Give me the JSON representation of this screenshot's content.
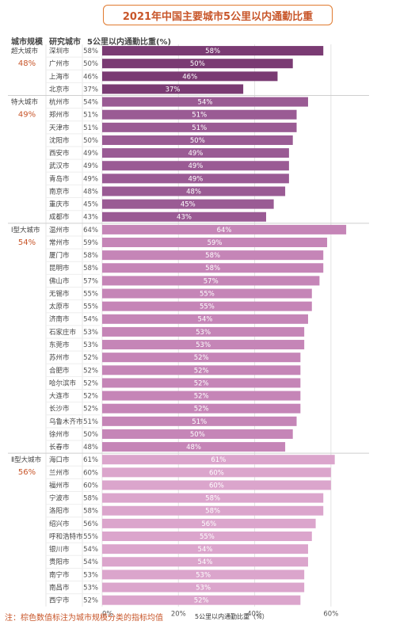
{
  "title": "2021年中国主要城市5公里以内通勤比重",
  "headers": {
    "col1": "城市规模",
    "col2": "研究城市",
    "col3": "5公里以内通勤比重(%)"
  },
  "note": "注：棕色数值标注为城市规模分类的指标均值",
  "colors": {
    "super": "#7a3b73",
    "special": "#9a5b94",
    "type1": "#c585b7",
    "type2": "#dba5cc",
    "avg_label": "#c8562a",
    "grid": "#e3e3e3"
  },
  "chart_data": {
    "type": "bar",
    "orientation": "horizontal",
    "xlabel": "5公里以内通勤比重（%）",
    "xlim": [
      0,
      0.7
    ],
    "xticks": [
      "0%",
      "20%",
      "40%",
      "60%"
    ],
    "xtick_values": [
      0,
      0.2,
      0.4,
      0.6
    ],
    "groups": [
      {
        "name": "超大城市",
        "avg": "48%",
        "color_key": "super",
        "cities": [
          "深圳市",
          "广州市",
          "上海市",
          "北京市"
        ],
        "values": [
          58,
          50,
          46,
          37
        ]
      },
      {
        "name": "特大城市",
        "avg": "49%",
        "color_key": "special",
        "cities": [
          "杭州市",
          "郑州市",
          "天津市",
          "沈阳市",
          "西安市",
          "武汉市",
          "青岛市",
          "南京市",
          "重庆市",
          "成都市"
        ],
        "values": [
          54,
          51,
          51,
          50,
          49,
          49,
          49,
          48,
          45,
          43
        ]
      },
      {
        "name": "Ⅰ型大城市",
        "avg": "54%",
        "color_key": "type1",
        "cities": [
          "温州市",
          "常州市",
          "厦门市",
          "昆明市",
          "佛山市",
          "无锡市",
          "太原市",
          "济南市",
          "石家庄市",
          "东莞市",
          "苏州市",
          "合肥市",
          "哈尔滨市",
          "大连市",
          "长沙市",
          "乌鲁木齐市",
          "徐州市",
          "长春市"
        ],
        "values": [
          64,
          59,
          58,
          58,
          57,
          55,
          55,
          54,
          53,
          53,
          52,
          52,
          52,
          52,
          52,
          51,
          50,
          48
        ]
      },
      {
        "name": "Ⅱ型大城市",
        "avg": "56%",
        "color_key": "type2",
        "cities": [
          "海口市",
          "兰州市",
          "福州市",
          "宁波市",
          "洛阳市",
          "绍兴市",
          "呼和浩特市",
          "银川市",
          "贵阳市",
          "南宁市",
          "南昌市",
          "西宁市"
        ],
        "values": [
          61,
          60,
          60,
          58,
          58,
          56,
          55,
          54,
          54,
          53,
          53,
          52
        ]
      }
    ]
  }
}
